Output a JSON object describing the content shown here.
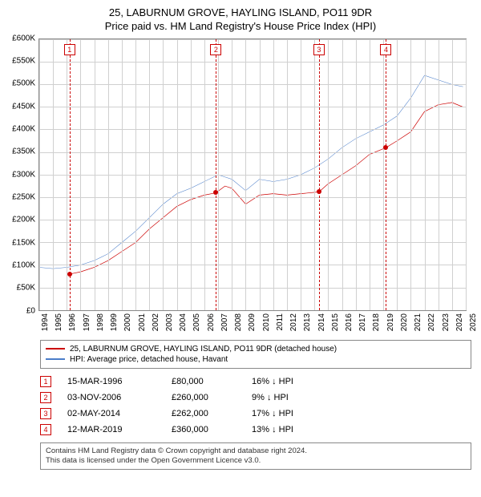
{
  "title_line1": "25, LABURNUM GROVE, HAYLING ISLAND, PO11 9DR",
  "title_line2": "Price paid vs. HM Land Registry's House Price Index (HPI)",
  "chart": {
    "type": "line",
    "x_years": [
      1994,
      1995,
      1996,
      1997,
      1998,
      1999,
      2000,
      2001,
      2002,
      2003,
      2004,
      2005,
      2006,
      2007,
      2008,
      2009,
      2010,
      2011,
      2012,
      2013,
      2014,
      2015,
      2016,
      2017,
      2018,
      2019,
      2020,
      2021,
      2022,
      2023,
      2024,
      2025
    ],
    "xlim": [
      1994,
      2025
    ],
    "ylim": [
      0,
      600000
    ],
    "ytick_step": 50000,
    "y_labels": [
      "£0",
      "£50K",
      "£100K",
      "£150K",
      "£200K",
      "£250K",
      "£300K",
      "£350K",
      "£400K",
      "£450K",
      "£500K",
      "£550K",
      "£600K"
    ],
    "grid_color": "#d0d0d0",
    "border_color": "#888888",
    "background_color": "#ffffff",
    "series": [
      {
        "name": "25, LABURNUM GROVE, HAYLING ISLAND, PO11 9DR (detached house)",
        "color": "#cc0000",
        "width": 2,
        "x": [
          1996.2,
          1997,
          1998,
          1999,
          2000,
          2001,
          2002,
          2003,
          2004,
          2005,
          2006,
          2006.84,
          2007.5,
          2008,
          2009,
          2010,
          2011,
          2012,
          2013,
          2014.33,
          2015,
          2016,
          2017,
          2018,
          2019.2,
          2020,
          2021,
          2022,
          2023,
          2024,
          2024.8
        ],
        "y": [
          80000,
          85000,
          95000,
          110000,
          130000,
          150000,
          180000,
          205000,
          230000,
          245000,
          255000,
          260000,
          275000,
          270000,
          235000,
          255000,
          258000,
          255000,
          258000,
          262000,
          280000,
          300000,
          320000,
          345000,
          360000,
          375000,
          395000,
          440000,
          455000,
          460000,
          450000
        ]
      },
      {
        "name": "HPI: Average price, detached house, Havant",
        "color": "#4a7dc9",
        "width": 1.5,
        "x": [
          1994,
          1995,
          1996,
          1997,
          1998,
          1999,
          2000,
          2001,
          2002,
          2003,
          2004,
          2005,
          2006,
          2007,
          2008,
          2009,
          2010,
          2011,
          2012,
          2013,
          2014,
          2015,
          2016,
          2017,
          2018,
          2019,
          2020,
          2021,
          2022,
          2023,
          2024,
          2024.8
        ],
        "y": [
          95000,
          92000,
          95000,
          100000,
          110000,
          125000,
          150000,
          175000,
          205000,
          235000,
          258000,
          270000,
          285000,
          300000,
          290000,
          265000,
          290000,
          285000,
          290000,
          300000,
          315000,
          335000,
          360000,
          380000,
          395000,
          410000,
          430000,
          470000,
          520000,
          510000,
          500000,
          495000
        ]
      }
    ],
    "event_markers": [
      {
        "n": "1",
        "x": 1996.2,
        "y": 80000
      },
      {
        "n": "2",
        "x": 2006.84,
        "y": 260000
      },
      {
        "n": "3",
        "x": 2014.33,
        "y": 262000
      },
      {
        "n": "4",
        "x": 2019.2,
        "y": 360000
      }
    ]
  },
  "legend": {
    "items": [
      {
        "color": "#cc0000",
        "label": "25, LABURNUM GROVE, HAYLING ISLAND, PO11 9DR (detached house)"
      },
      {
        "color": "#4a7dc9",
        "label": "HPI: Average price, detached house, Havant"
      }
    ]
  },
  "events_table": [
    {
      "n": "1",
      "date": "15-MAR-1996",
      "price": "£80,000",
      "delta": "16% ↓ HPI"
    },
    {
      "n": "2",
      "date": "03-NOV-2006",
      "price": "£260,000",
      "delta": "9% ↓ HPI"
    },
    {
      "n": "3",
      "date": "02-MAY-2014",
      "price": "£262,000",
      "delta": "17% ↓ HPI"
    },
    {
      "n": "4",
      "date": "12-MAR-2019",
      "price": "£360,000",
      "delta": "13% ↓ HPI"
    }
  ],
  "footer_line1": "Contains HM Land Registry data © Crown copyright and database right 2024.",
  "footer_line2": "This data is licensed under the Open Government Licence v3.0."
}
